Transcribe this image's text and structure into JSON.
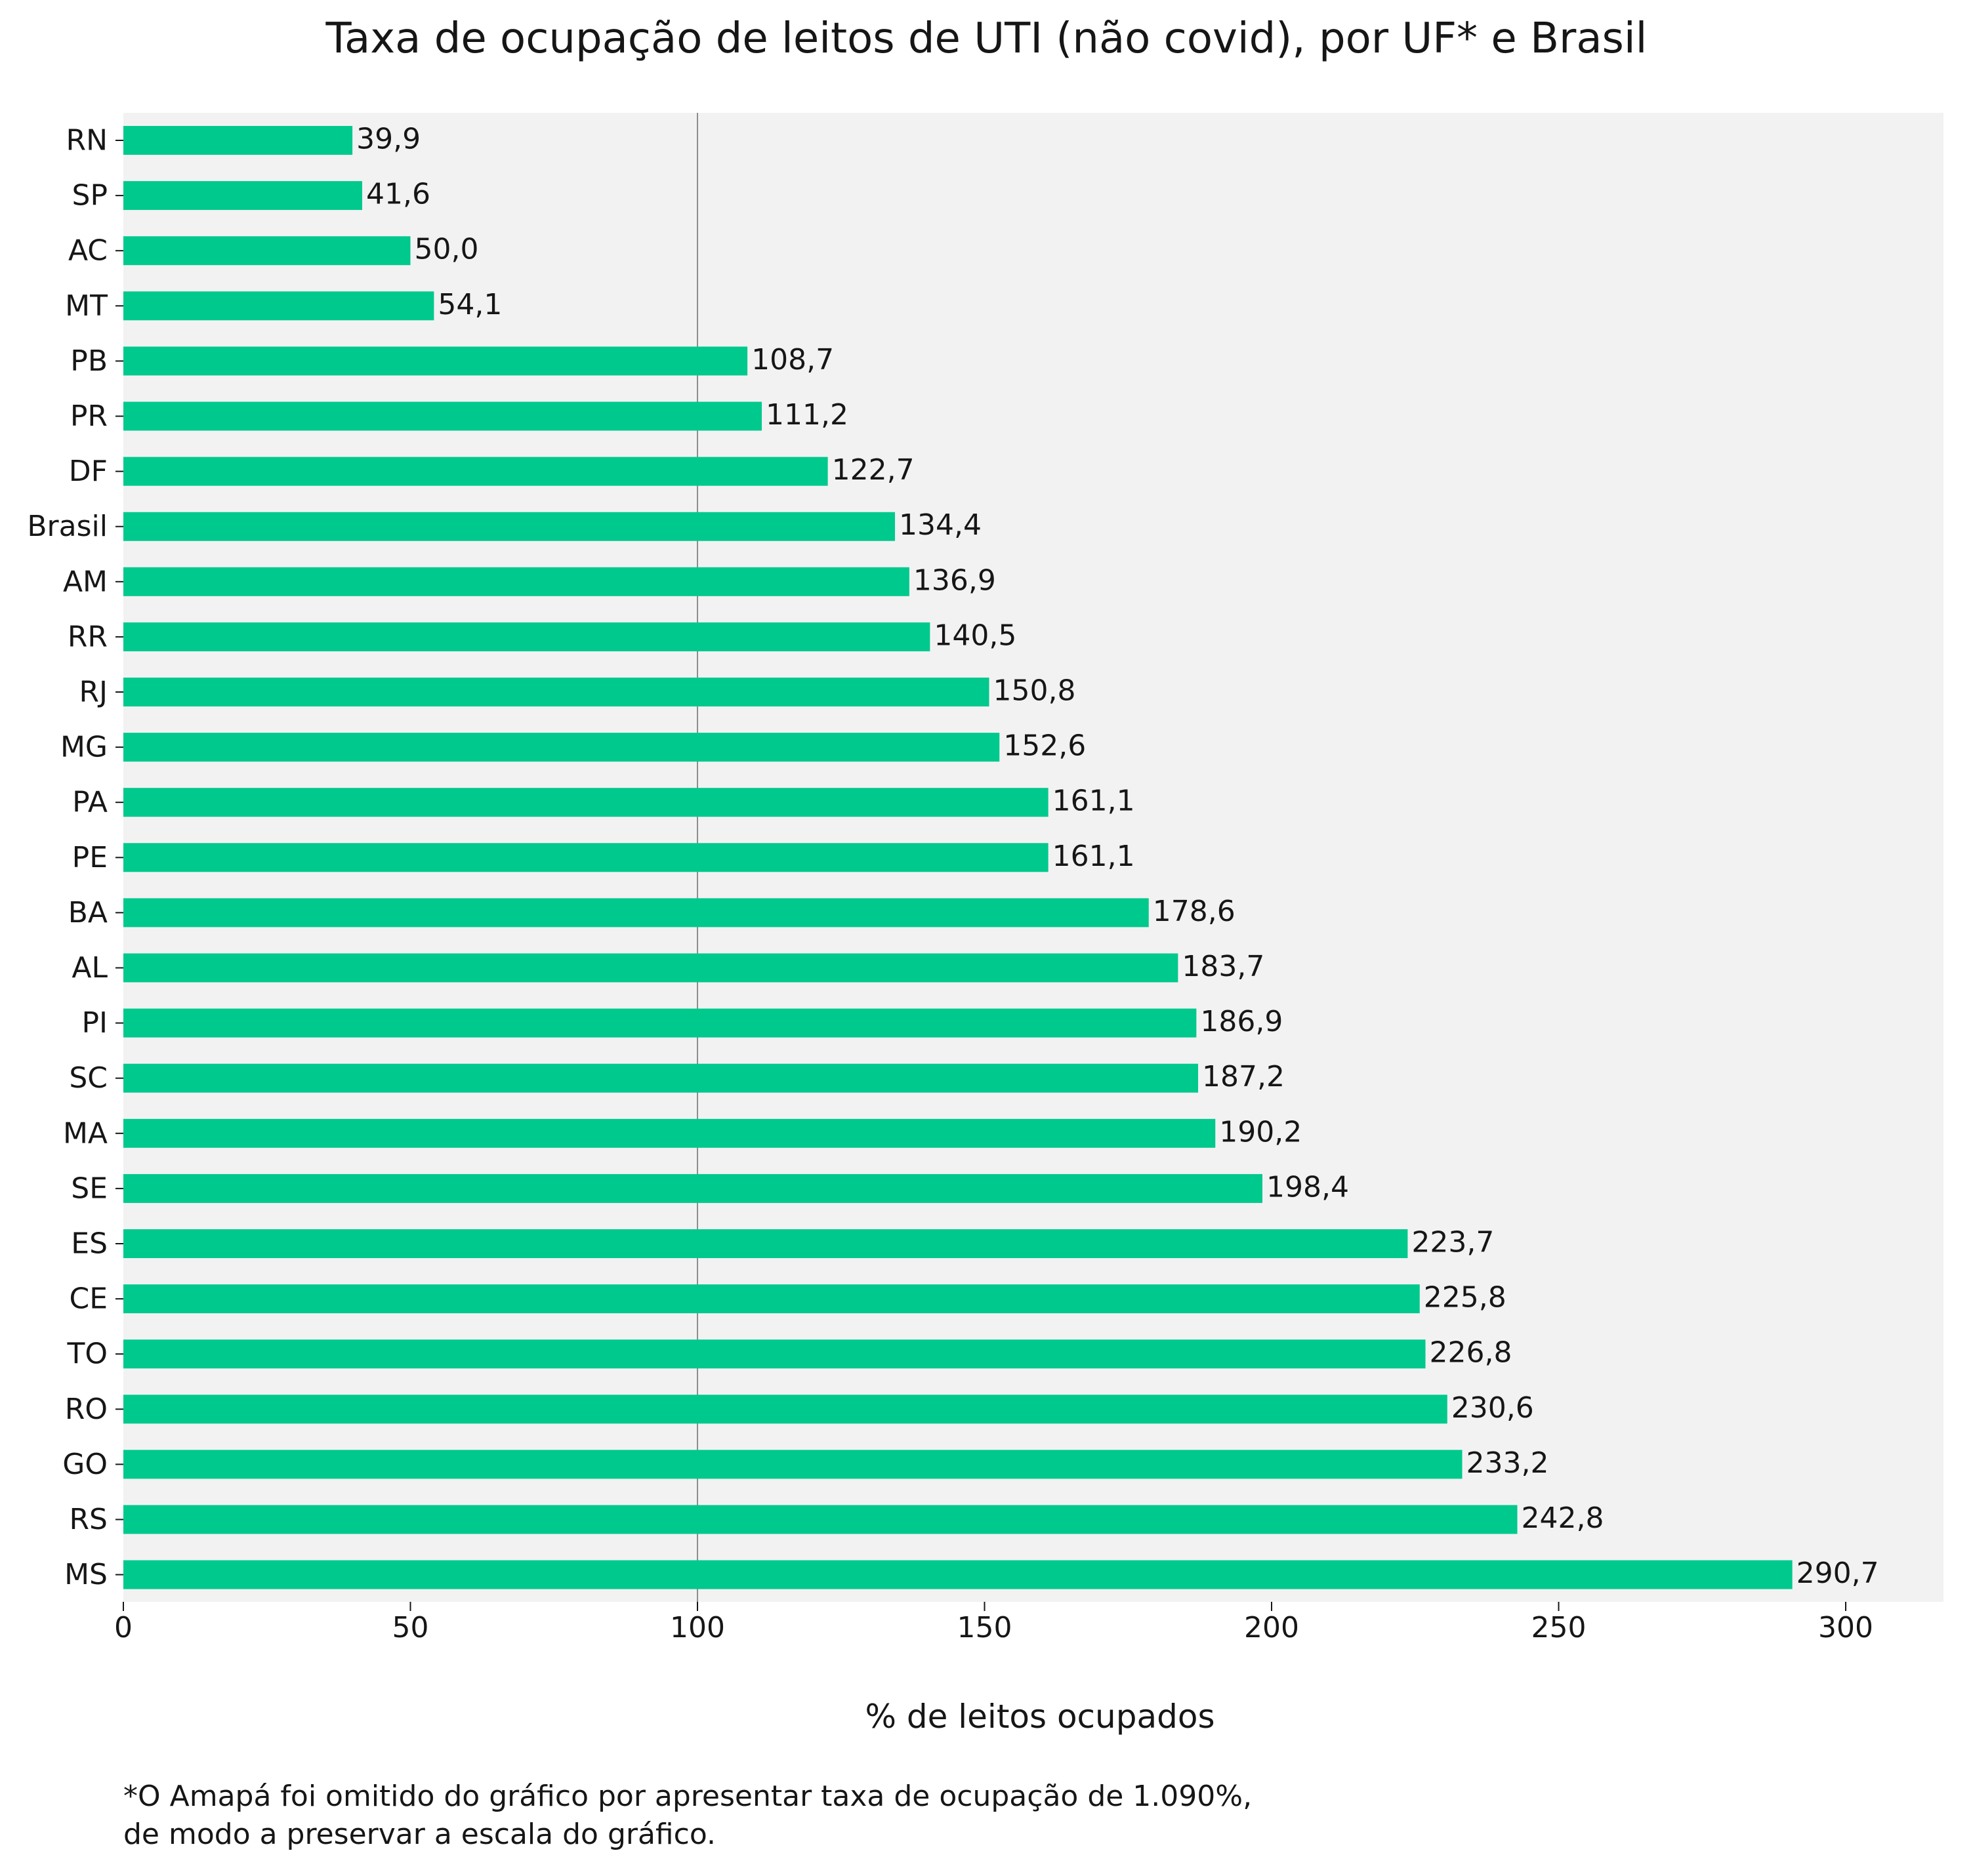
{
  "colors": {
    "bar": "#00c98d",
    "plot_background": "#f2f2f2",
    "reference_line": "#8d8d8d",
    "text": "#161616"
  },
  "chart_data": {
    "type": "bar",
    "orientation": "horizontal",
    "title": "Taxa de ocupação de leitos de UTI (não covid), por UF* e Brasil",
    "xlabel": "% de leitos ocupados",
    "ylabel": "",
    "xlim": [
      0,
      320
    ],
    "xticks": [
      0,
      50,
      100,
      150,
      200,
      250,
      300
    ],
    "reference_line": 100,
    "grid": false,
    "categories": [
      "RN",
      "SP",
      "AC",
      "MT",
      "PB",
      "PR",
      "DF",
      "Brasil",
      "AM",
      "RR",
      "RJ",
      "MG",
      "PA",
      "PE",
      "BA",
      "AL",
      "PI",
      "SC",
      "MA",
      "SE",
      "ES",
      "CE",
      "TO",
      "RO",
      "GO",
      "RS",
      "MS"
    ],
    "values": [
      39.9,
      41.6,
      50.0,
      54.1,
      108.7,
      111.2,
      122.7,
      134.4,
      136.9,
      140.5,
      150.8,
      152.6,
      161.1,
      161.1,
      178.6,
      183.7,
      186.9,
      187.2,
      190.2,
      198.4,
      223.7,
      225.8,
      226.8,
      230.6,
      233.2,
      242.8,
      290.7
    ],
    "value_labels": [
      "39,9",
      "41,6",
      "50,0",
      "54,1",
      "108,7",
      "111,2",
      "122,7",
      "134,4",
      "136,9",
      "140,5",
      "150,8",
      "152,6",
      "161,1",
      "161,1",
      "178,6",
      "183,7",
      "186,9",
      "187,2",
      "190,2",
      "198,4",
      "223,7",
      "225,8",
      "226,8",
      "230,6",
      "233,2",
      "242,8",
      "290,7"
    ]
  },
  "footnote": {
    "line1": "*O Amapá foi omitido do gráfico por apresentar taxa de ocupação de 1.090%,",
    "line2": "de modo a preservar a escala do gráfico."
  }
}
